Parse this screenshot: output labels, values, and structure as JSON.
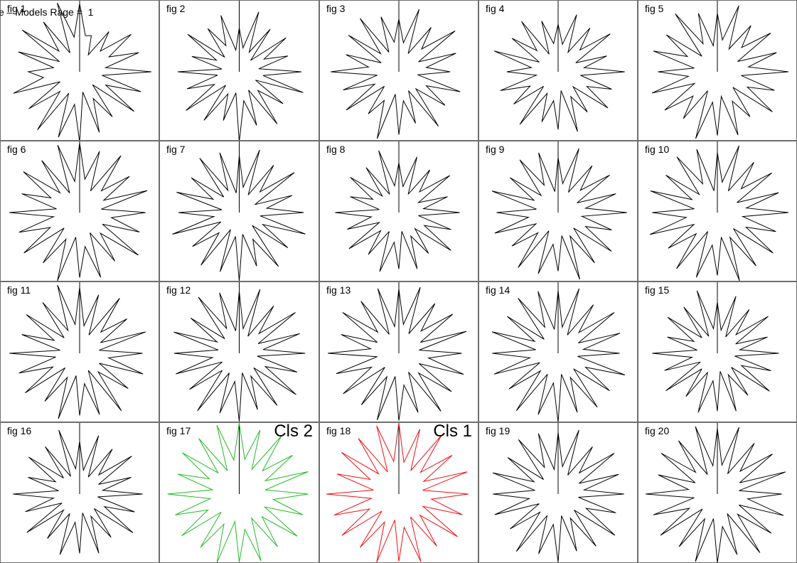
{
  "page": {
    "header": "e – Models Rage =  1"
  },
  "chart_data": {
    "type": "radar",
    "layout": "grid of star-glyph plots, 4 rows x 5 columns",
    "grid": {
      "rows": 4,
      "cols": 5
    },
    "default_color": "#000000",
    "figures": [
      {
        "label": "fig 1",
        "class_label": "",
        "color": "#000000",
        "values": [
          0.93,
          0.5,
          0.52,
          0.26,
          0.68,
          0.4,
          0.87,
          0.45,
          0.85,
          0.36,
          0.98,
          0.31,
          0.88,
          0.4,
          0.92,
          0.25,
          0.76,
          0.41,
          0.87,
          0.28,
          0.96,
          0.45,
          0.94,
          0.33,
          0.98,
          0.38,
          0.86,
          0.3,
          0.95,
          0.5,
          0.7,
          0.36,
          0.88,
          0.31,
          0.97,
          0.4,
          0.84,
          0.29,
          0.99,
          0.48
        ]
      },
      {
        "label": "fig 2",
        "class_label": "",
        "color": "#000000",
        "values": [
          0.6,
          0.33,
          0.86,
          0.3,
          0.72,
          0.22,
          0.79,
          0.38,
          0.7,
          0.27,
          0.85,
          0.33,
          0.92,
          0.25,
          0.74,
          0.36,
          0.88,
          0.28,
          0.77,
          0.4,
          0.96,
          0.29,
          0.7,
          0.34,
          0.82,
          0.26,
          0.9,
          0.38,
          0.75,
          0.3,
          0.84,
          0.24,
          0.68,
          0.35,
          0.87,
          0.28,
          0.73,
          0.4,
          0.81,
          0.3
        ]
      },
      {
        "label": "fig 3",
        "class_label": "",
        "color": "#000000",
        "values": [
          0.72,
          0.4,
          0.9,
          0.28,
          0.75,
          0.44,
          0.95,
          0.3,
          0.82,
          0.38,
          0.7,
          0.26,
          0.88,
          0.42,
          0.78,
          0.33,
          0.92,
          0.29,
          0.74,
          0.4,
          0.86,
          0.31,
          0.96,
          0.44,
          0.71,
          0.28,
          0.89,
          0.37,
          0.8,
          0.3,
          0.93,
          0.42,
          0.76,
          0.27,
          0.85,
          0.35,
          0.9,
          0.3,
          0.79,
          0.41
        ]
      },
      {
        "label": "fig 4",
        "class_label": "",
        "color": "#000000",
        "values": [
          0.65,
          0.38,
          0.82,
          0.3,
          0.74,
          0.42,
          0.88,
          0.27,
          0.7,
          0.36,
          0.91,
          0.31,
          0.77,
          0.44,
          0.84,
          0.29,
          0.68,
          0.38,
          0.86,
          0.26,
          0.79,
          0.4,
          0.72,
          0.33,
          0.89,
          0.28,
          0.75,
          0.43,
          0.83,
          0.3,
          0.7,
          0.37,
          0.92,
          0.29,
          0.78,
          0.41,
          0.85,
          0.27,
          0.73,
          0.39
        ]
      },
      {
        "label": "fig 5",
        "class_label": "",
        "color": "#000000",
        "values": [
          0.8,
          0.44,
          0.95,
          0.35,
          0.78,
          0.47,
          0.9,
          0.31,
          0.85,
          0.43,
          0.97,
          0.33,
          0.82,
          0.46,
          0.93,
          0.3,
          0.76,
          0.45,
          0.91,
          0.34,
          0.87,
          0.42,
          0.96,
          0.29,
          0.79,
          0.47,
          0.89,
          0.35,
          0.94,
          0.4,
          0.81,
          0.32,
          0.92,
          0.46,
          0.86,
          0.3,
          0.98,
          0.43,
          0.84,
          0.36
        ]
      },
      {
        "label": "fig 6",
        "class_label": "",
        "color": "#000000",
        "values": [
          0.95,
          0.46,
          0.88,
          0.33,
          0.96,
          0.42,
          0.84,
          0.37,
          0.97,
          0.3,
          0.9,
          0.44,
          0.86,
          0.35,
          0.99,
          0.4,
          0.82,
          0.31,
          0.93,
          0.47,
          0.89,
          0.34,
          0.98,
          0.41,
          0.85,
          0.3,
          0.94,
          0.45,
          0.87,
          0.36,
          0.96,
          0.32,
          0.83,
          0.44,
          0.95,
          0.38,
          0.88,
          0.3,
          0.97,
          0.43
        ]
      },
      {
        "label": "fig 7",
        "class_label": "",
        "color": "#000000",
        "values": [
          0.78,
          0.35,
          0.9,
          0.27,
          0.8,
          0.4,
          0.93,
          0.24,
          0.76,
          0.38,
          0.88,
          0.29,
          0.95,
          0.36,
          0.82,
          0.25,
          0.91,
          0.41,
          0.77,
          0.3,
          0.94,
          0.33,
          0.85,
          0.26,
          0.89,
          0.39,
          0.79,
          0.28,
          0.96,
          0.35,
          0.83,
          0.24,
          0.9,
          0.4,
          0.81,
          0.3,
          0.92,
          0.34,
          0.86,
          0.27
        ]
      },
      {
        "label": "fig 8",
        "class_label": "",
        "color": "#000000",
        "values": [
          0.68,
          0.36,
          0.8,
          0.28,
          0.72,
          0.4,
          0.86,
          0.3,
          0.7,
          0.34,
          0.83,
          0.27,
          0.75,
          0.39,
          0.88,
          0.31,
          0.69,
          0.36,
          0.81,
          0.26,
          0.77,
          0.41,
          0.85,
          0.29,
          0.71,
          0.35,
          0.84,
          0.3,
          0.74,
          0.38,
          0.87,
          0.27,
          0.7,
          0.4,
          0.82,
          0.32,
          0.76,
          0.28,
          0.89,
          0.37
        ]
      },
      {
        "label": "fig 9",
        "class_label": "",
        "color": "#000000",
        "values": [
          0.75,
          0.4,
          0.92,
          0.31,
          0.79,
          0.43,
          0.87,
          0.29,
          0.83,
          0.38,
          0.94,
          0.33,
          0.77,
          0.42,
          0.9,
          0.3,
          0.85,
          0.36,
          0.96,
          0.32,
          0.8,
          0.44,
          0.88,
          0.28,
          0.93,
          0.39,
          0.78,
          0.34,
          0.91,
          0.41,
          0.84,
          0.3,
          0.95,
          0.37,
          0.81,
          0.33,
          0.89,
          0.42,
          0.86,
          0.29
        ]
      },
      {
        "label": "fig 10",
        "class_label": "",
        "color": "#000000",
        "values": [
          0.82,
          0.42,
          0.96,
          0.33,
          0.85,
          0.46,
          0.92,
          0.3,
          0.88,
          0.4,
          0.97,
          0.35,
          0.84,
          0.44,
          0.94,
          0.31,
          0.9,
          0.38,
          0.98,
          0.34,
          0.86,
          0.45,
          0.93,
          0.29,
          0.95,
          0.41,
          0.83,
          0.36,
          0.97,
          0.43,
          0.89,
          0.32,
          0.96,
          0.39,
          0.87,
          0.35,
          0.94,
          0.44,
          0.91,
          0.3
        ]
      },
      {
        "label": "fig 11",
        "class_label": "",
        "color": "#000000",
        "values": [
          0.9,
          0.38,
          0.84,
          0.28,
          0.93,
          0.41,
          0.8,
          0.32,
          0.95,
          0.27,
          0.86,
          0.4,
          0.91,
          0.3,
          0.82,
          0.36,
          0.97,
          0.26,
          0.88,
          0.42,
          0.85,
          0.31,
          0.94,
          0.37,
          0.81,
          0.28,
          0.92,
          0.41,
          0.87,
          0.33,
          0.96,
          0.27,
          0.83,
          0.39,
          0.9,
          0.3,
          0.86,
          0.35,
          0.98,
          0.4
        ]
      },
      {
        "label": "fig 12",
        "class_label": "",
        "color": "#000000",
        "values": [
          0.85,
          0.34,
          0.92,
          0.26,
          0.8,
          0.38,
          0.95,
          0.29,
          0.87,
          0.33,
          0.9,
          0.25,
          0.83,
          0.4,
          0.96,
          0.28,
          0.88,
          0.35,
          0.81,
          0.27,
          0.93,
          0.39,
          0.86,
          0.3,
          0.97,
          0.33,
          0.84,
          0.26,
          0.91,
          0.37,
          0.89,
          0.29,
          0.94,
          0.34,
          0.82,
          0.28,
          0.95,
          0.38,
          0.87,
          0.31
        ]
      },
      {
        "label": "fig 13",
        "class_label": "",
        "color": "#000000",
        "values": [
          0.88,
          0.4,
          0.95,
          0.3,
          0.84,
          0.43,
          0.91,
          0.33,
          0.97,
          0.28,
          0.86,
          0.41,
          0.93,
          0.31,
          0.89,
          0.38,
          0.98,
          0.29,
          0.85,
          0.44,
          0.92,
          0.32,
          0.96,
          0.36,
          0.87,
          0.27,
          0.94,
          0.42,
          0.9,
          0.3,
          0.97,
          0.39,
          0.83,
          0.33,
          0.95,
          0.41,
          0.88,
          0.29,
          0.93,
          0.37
        ]
      },
      {
        "label": "fig 14",
        "class_label": "",
        "color": "#000000",
        "values": [
          0.86,
          0.36,
          0.93,
          0.28,
          0.82,
          0.4,
          0.95,
          0.31,
          0.89,
          0.35,
          0.84,
          0.27,
          0.96,
          0.42,
          0.87,
          0.3,
          0.91,
          0.37,
          0.85,
          0.29,
          0.94,
          0.41,
          0.88,
          0.32,
          0.97,
          0.34,
          0.83,
          0.28,
          0.92,
          0.39,
          0.9,
          0.31,
          0.95,
          0.36,
          0.86,
          0.27,
          0.93,
          0.4,
          0.89,
          0.33
        ]
      },
      {
        "label": "fig 15",
        "class_label": "",
        "color": "#000000",
        "values": [
          0.7,
          0.32,
          0.82,
          0.25,
          0.74,
          0.36,
          0.86,
          0.28,
          0.72,
          0.31,
          0.84,
          0.24,
          0.77,
          0.37,
          0.88,
          0.27,
          0.71,
          0.33,
          0.83,
          0.25,
          0.79,
          0.38,
          0.85,
          0.29,
          0.73,
          0.3,
          0.87,
          0.26,
          0.76,
          0.35,
          0.89,
          0.28,
          0.72,
          0.36,
          0.84,
          0.3,
          0.78,
          0.26,
          0.9,
          0.34
        ]
      },
      {
        "label": "fig 16",
        "class_label": "",
        "color": "#000000",
        "values": [
          0.72,
          0.33,
          0.84,
          0.26,
          0.76,
          0.37,
          0.88,
          0.29,
          0.74,
          0.32,
          0.86,
          0.25,
          0.79,
          0.38,
          0.9,
          0.28,
          0.73,
          0.34,
          0.85,
          0.26,
          0.81,
          0.39,
          0.87,
          0.3,
          0.75,
          0.31,
          0.89,
          0.27,
          0.78,
          0.36,
          0.91,
          0.29,
          0.74,
          0.37,
          0.86,
          0.31,
          0.8,
          0.27,
          0.92,
          0.35
        ]
      },
      {
        "label": "fig 17",
        "class_label": "Cls 2",
        "color": "#22bb22",
        "values": [
          0.97,
          0.48,
          0.92,
          0.38,
          0.98,
          0.45,
          0.9,
          0.4,
          0.99,
          0.36,
          0.94,
          0.47,
          0.91,
          0.39,
          0.98,
          0.44,
          0.89,
          0.37,
          0.96,
          0.49,
          0.93,
          0.38,
          0.99,
          0.46,
          0.9,
          0.35,
          0.97,
          0.48,
          0.92,
          0.4,
          0.98,
          0.37,
          0.88,
          0.46,
          0.96,
          0.41,
          0.94,
          0.36,
          0.99,
          0.47
        ]
      },
      {
        "label": "fig 18",
        "class_label": "Cls 1",
        "color": "#ee1111",
        "values": [
          0.97,
          0.44,
          0.93,
          0.36,
          0.99,
          0.42,
          0.9,
          0.38,
          0.98,
          0.33,
          0.95,
          0.45,
          0.91,
          0.37,
          0.99,
          0.41,
          0.88,
          0.35,
          0.97,
          0.46,
          0.92,
          0.36,
          0.98,
          0.43,
          0.9,
          0.33,
          0.96,
          0.45,
          0.93,
          0.38,
          0.99,
          0.35,
          0.89,
          0.44,
          0.97,
          0.39,
          0.94,
          0.34,
          0.98,
          0.45
        ]
      },
      {
        "label": "fig 19",
        "class_label": "",
        "color": "#000000",
        "values": [
          0.84,
          0.38,
          0.92,
          0.29,
          0.8,
          0.41,
          0.95,
          0.32,
          0.87,
          0.36,
          0.9,
          0.28,
          0.83,
          0.43,
          0.96,
          0.31,
          0.88,
          0.37,
          0.82,
          0.3,
          0.93,
          0.42,
          0.86,
          0.33,
          0.97,
          0.35,
          0.81,
          0.29,
          0.91,
          0.4,
          0.89,
          0.32,
          0.94,
          0.37,
          0.85,
          0.28,
          0.92,
          0.41,
          0.87,
          0.34
        ]
      },
      {
        "label": "fig 20",
        "class_label": "",
        "color": "#000000",
        "values": [
          0.9,
          0.4,
          0.96,
          0.31,
          0.86,
          0.44,
          0.93,
          0.34,
          0.98,
          0.3,
          0.88,
          0.42,
          0.95,
          0.33,
          0.91,
          0.39,
          0.99,
          0.3,
          0.87,
          0.45,
          0.94,
          0.34,
          0.97,
          0.38,
          0.89,
          0.29,
          0.96,
          0.43,
          0.92,
          0.32,
          0.98,
          0.4,
          0.85,
          0.34,
          0.95,
          0.42,
          0.9,
          0.3,
          0.97,
          0.39
        ]
      }
    ]
  }
}
